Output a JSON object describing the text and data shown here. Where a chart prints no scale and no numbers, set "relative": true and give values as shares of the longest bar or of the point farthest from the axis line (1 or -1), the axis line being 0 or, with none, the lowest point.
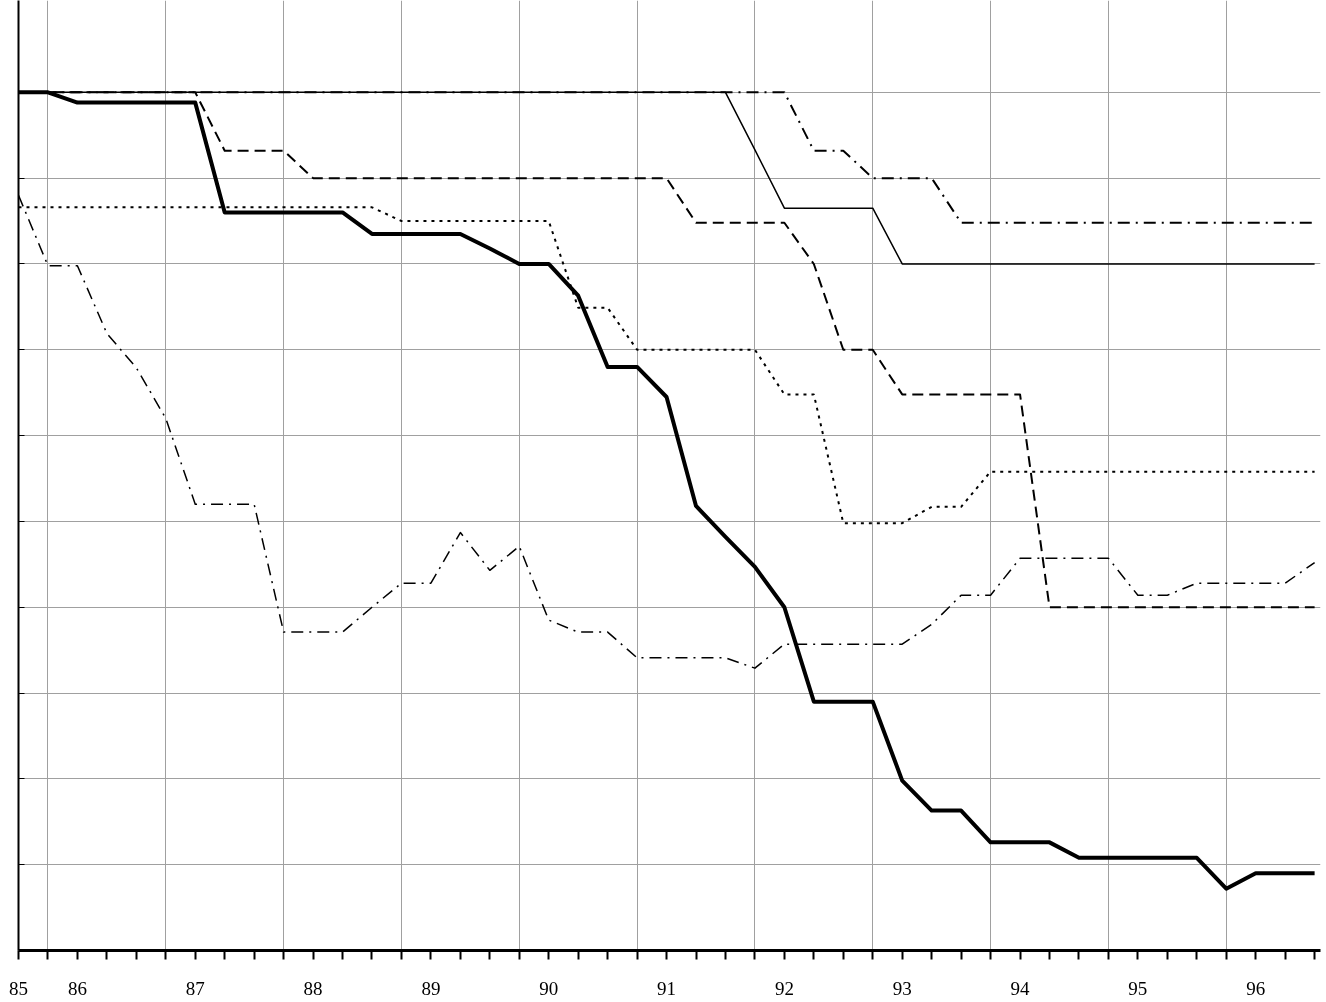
{
  "chart_data": {
    "type": "line",
    "relative": true,
    "grid": true,
    "x": [
      85.5,
      85.75,
      86,
      86.25,
      86.5,
      86.75,
      87,
      87.25,
      87.5,
      87.75,
      88,
      88.25,
      88.5,
      88.75,
      89,
      89.25,
      89.5,
      89.75,
      90,
      90.25,
      90.5,
      90.75,
      91,
      91.25,
      91.5,
      91.75,
      92,
      92.25,
      92.5,
      92.75,
      93,
      93.25,
      93.5,
      93.75,
      94,
      94.25,
      94.5,
      94.75,
      95,
      95.25,
      95.5,
      95.75,
      96,
      96.25,
      96.5
    ],
    "xlim": [
      85.5,
      96.55
    ],
    "xticks": [
      {
        "value": 85.5,
        "label": "85"
      },
      {
        "value": 85.75,
        "label": null
      },
      {
        "value": 86,
        "label": "86"
      },
      {
        "value": 86.75,
        "label": null
      },
      {
        "value": 87,
        "label": "87"
      },
      {
        "value": 87.75,
        "label": null
      },
      {
        "value": 88,
        "label": "88"
      },
      {
        "value": 88.75,
        "label": null
      },
      {
        "value": 89,
        "label": "89"
      },
      {
        "value": 89.75,
        "label": null
      },
      {
        "value": 90,
        "label": "90"
      },
      {
        "value": 90.75,
        "label": null
      },
      {
        "value": 91,
        "label": "91"
      },
      {
        "value": 91.75,
        "label": null
      },
      {
        "value": 92,
        "label": "92"
      },
      {
        "value": 92.75,
        "label": null
      },
      {
        "value": 93,
        "label": "93"
      },
      {
        "value": 93.75,
        "label": null
      },
      {
        "value": 94,
        "label": "94"
      },
      {
        "value": 94.75,
        "label": null
      },
      {
        "value": 95,
        "label": "95"
      },
      {
        "value": 95.75,
        "label": null
      },
      {
        "value": 96,
        "label": "96"
      }
    ],
    "series": [
      {
        "color": "#000000",
        "line_style": "solid",
        "values": [
          1.0,
          1.0,
          0.988,
          0.988,
          0.988,
          0.988,
          0.988,
          0.86,
          0.86,
          0.86,
          0.86,
          0.86,
          0.835,
          0.835,
          0.835,
          0.835,
          0.818,
          0.8,
          0.8,
          0.763,
          0.68,
          0.68,
          0.645,
          0.518,
          0.482,
          0.447,
          0.4,
          0.29,
          0.29,
          0.29,
          0.198,
          0.163,
          0.163,
          0.126,
          0.126,
          0.126,
          0.108,
          0.108,
          0.108,
          0.108,
          0.108,
          0.072,
          0.09,
          0.09,
          0.09
        ]
      },
      {
        "color": "#000000",
        "line_style": "solid",
        "values": [
          1.0,
          1.0,
          1.0,
          1.0,
          1.0,
          1.0,
          1.0,
          1.0,
          1.0,
          1.0,
          1.0,
          1.0,
          1.0,
          1.0,
          1.0,
          1.0,
          1.0,
          1.0,
          1.0,
          1.0,
          1.0,
          1.0,
          1.0,
          1.0,
          1.0,
          0.933,
          0.865,
          0.865,
          0.865,
          0.865,
          0.8,
          0.8,
          0.8,
          0.8,
          0.8,
          0.8,
          0.8,
          0.8,
          0.8,
          0.8,
          0.8,
          0.8,
          0.8,
          0.8,
          0.8
        ]
      },
      {
        "color": "#000000",
        "line_style": "dashed",
        "values": [
          1.0,
          1.0,
          1.0,
          1.0,
          1.0,
          1.0,
          1.0,
          0.932,
          0.932,
          0.932,
          0.9,
          0.9,
          0.9,
          0.9,
          0.9,
          0.9,
          0.9,
          0.9,
          0.9,
          0.9,
          0.9,
          0.9,
          0.9,
          0.848,
          0.848,
          0.848,
          0.848,
          0.8,
          0.7,
          0.7,
          0.648,
          0.648,
          0.648,
          0.648,
          0.648,
          0.4,
          0.4,
          0.4,
          0.4,
          0.4,
          0.4,
          0.4,
          0.4,
          0.4,
          0.4
        ]
      },
      {
        "color": "#000000",
        "line_style": "dashdot",
        "values": [
          1.0,
          1.0,
          1.0,
          1.0,
          1.0,
          1.0,
          1.0,
          1.0,
          1.0,
          1.0,
          1.0,
          1.0,
          1.0,
          1.0,
          1.0,
          1.0,
          1.0,
          1.0,
          1.0,
          1.0,
          1.0,
          1.0,
          1.0,
          1.0,
          1.0,
          1.0,
          1.0,
          0.932,
          0.932,
          0.9,
          0.9,
          0.9,
          0.848,
          0.848,
          0.848,
          0.848,
          0.848,
          0.848,
          0.848,
          0.848,
          0.848,
          0.848,
          0.848,
          0.848,
          0.848
        ]
      },
      {
        "color": "#000000",
        "line_style": "dotted",
        "values": [
          0.866,
          0.866,
          0.866,
          0.866,
          0.866,
          0.866,
          0.866,
          0.866,
          0.866,
          0.866,
          0.866,
          0.866,
          0.866,
          0.85,
          0.85,
          0.85,
          0.85,
          0.85,
          0.85,
          0.749,
          0.749,
          0.7,
          0.7,
          0.7,
          0.7,
          0.7,
          0.648,
          0.648,
          0.498,
          0.498,
          0.498,
          0.517,
          0.517,
          0.558,
          0.558,
          0.558,
          0.558,
          0.558,
          0.558,
          0.558,
          0.558,
          0.558,
          0.558,
          0.558,
          0.558
        ]
      },
      {
        "color": "#000000",
        "line_style": "dashdot",
        "values": [
          0.88,
          0.798,
          0.798,
          0.719,
          0.679,
          0.62,
          0.52,
          0.52,
          0.52,
          0.371,
          0.371,
          0.371,
          0.4,
          0.428,
          0.428,
          0.487,
          0.443,
          0.471,
          0.385,
          0.371,
          0.371,
          0.341,
          0.341,
          0.341,
          0.341,
          0.329,
          0.357,
          0.357,
          0.357,
          0.357,
          0.357,
          0.38,
          0.414,
          0.414,
          0.457,
          0.457,
          0.457,
          0.457,
          0.414,
          0.414,
          0.428,
          0.428,
          0.428,
          0.428,
          0.452
        ]
      }
    ]
  }
}
